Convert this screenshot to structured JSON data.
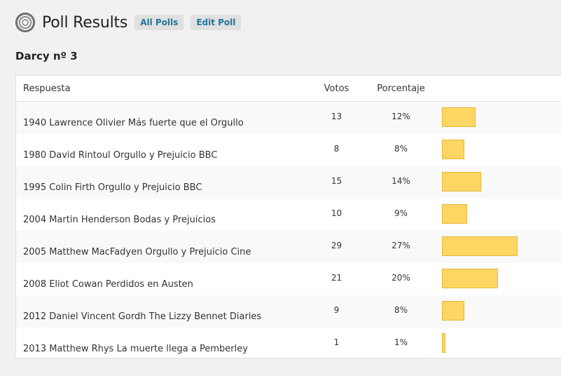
{
  "header": {
    "title": "Poll Results",
    "all_polls_label": "All Polls",
    "edit_poll_label": "Edit Poll"
  },
  "poll": {
    "name": "Darcy nº 3"
  },
  "table": {
    "columns": [
      "Respuesta",
      "Votos",
      "Porcentaje"
    ],
    "rows": [
      {
        "answer": "1940 Lawrence Olivier Más fuerte que el Orgullo",
        "votes": "13",
        "percent": "12%",
        "share": 12
      },
      {
        "answer": "1980 David Rintoul Orgullo y Prejuicio BBC",
        "votes": "8",
        "percent": "8%",
        "share": 8
      },
      {
        "answer": "1995 Colin Firth Orgullo y Prejuicio BBC",
        "votes": "15",
        "percent": "14%",
        "share": 14
      },
      {
        "answer": "2004 Martin Henderson Bodas y Prejuicios",
        "votes": "10",
        "percent": "9%",
        "share": 9
      },
      {
        "answer": "2005 Matthew MacFadyen Orgullo y Prejuicio Cine",
        "votes": "29",
        "percent": "27%",
        "share": 27
      },
      {
        "answer": "2008 Eliot Cowan Perdidos en Austen",
        "votes": "21",
        "percent": "20%",
        "share": 20
      },
      {
        "answer": "2012 Daniel Vincent Gordh The Lizzy Bennet Diaries",
        "votes": "9",
        "percent": "8%",
        "share": 8
      },
      {
        "answer": "2013 Matthew Rhys La muerte llega a Pemberley",
        "votes": "1",
        "percent": "1%",
        "share": 1
      }
    ]
  },
  "colors": {
    "bar_fill": "#fdd562",
    "bar_border": "#e4b93a",
    "link": "#21759b"
  }
}
